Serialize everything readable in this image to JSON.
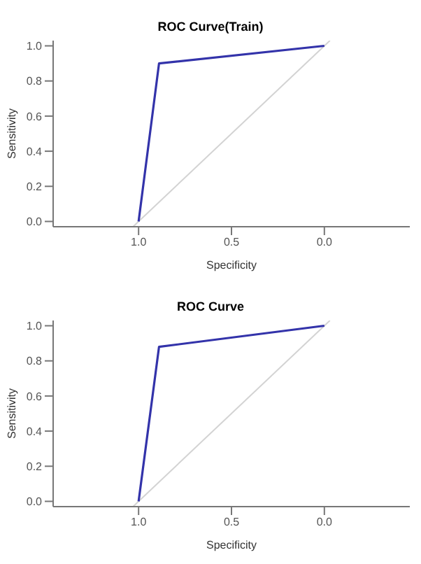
{
  "chart_data": [
    {
      "type": "line",
      "title": "ROC Curve(Train)",
      "xlabel": "Specificity",
      "ylabel": "Sensitivity",
      "xlim": [
        1.46,
        -0.46
      ],
      "ylim": [
        -0.03,
        1.03
      ],
      "xticks": [
        {
          "value": 1,
          "label": "1.0"
        },
        {
          "value": 0.5,
          "label": "0.5"
        },
        {
          "value": 0,
          "label": "0.0"
        }
      ],
      "yticks": [
        {
          "value": 0,
          "label": "0.0"
        },
        {
          "value": 0.2,
          "label": "0.2"
        },
        {
          "value": 0.4,
          "label": "0.4"
        },
        {
          "value": 0.6,
          "label": "0.6"
        },
        {
          "value": 0.8,
          "label": "0.8"
        },
        {
          "value": 1,
          "label": "1.0"
        }
      ],
      "grid": false,
      "marker": "none",
      "series": [
        {
          "color": "#d3d3d3",
          "x": [
            1.03,
            -0.03
          ],
          "values": [
            -0.03,
            1.03
          ]
        },
        {
          "color": "#3333aa",
          "x": [
            1,
            0.89,
            0
          ],
          "values": [
            0,
            0.9,
            1
          ]
        }
      ]
    },
    {
      "type": "line",
      "title": "ROC Curve",
      "xlabel": "Specificity",
      "ylabel": "Sensitivity",
      "xlim": [
        1.46,
        -0.46
      ],
      "ylim": [
        -0.03,
        1.03
      ],
      "xticks": [
        {
          "value": 1,
          "label": "1.0"
        },
        {
          "value": 0.5,
          "label": "0.5"
        },
        {
          "value": 0,
          "label": "0.0"
        }
      ],
      "yticks": [
        {
          "value": 0,
          "label": "0.0"
        },
        {
          "value": 0.2,
          "label": "0.2"
        },
        {
          "value": 0.4,
          "label": "0.4"
        },
        {
          "value": 0.6,
          "label": "0.6"
        },
        {
          "value": 0.8,
          "label": "0.8"
        },
        {
          "value": 1,
          "label": "1.0"
        }
      ],
      "grid": false,
      "marker": "none",
      "series": [
        {
          "color": "#d3d3d3",
          "x": [
            1.03,
            -0.03
          ],
          "values": [
            -0.03,
            1.03
          ]
        },
        {
          "color": "#3333aa",
          "x": [
            1,
            0.89,
            0
          ],
          "values": [
            0,
            0.88,
            1
          ]
        }
      ]
    }
  ]
}
